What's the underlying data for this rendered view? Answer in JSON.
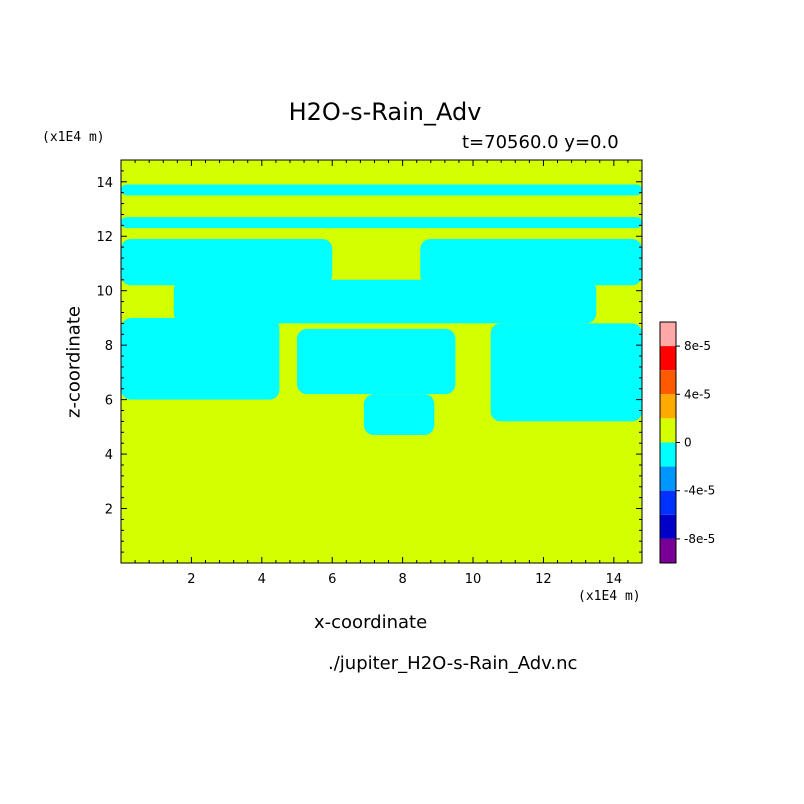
{
  "chart_data": {
    "type": "heatmap",
    "title": "H2O-s-Rain_Adv",
    "subtitle": "t=70560.0 y=0.0",
    "xlabel": "x-coordinate",
    "ylabel": "z-coordinate",
    "x_unit": "(x1E4 m)",
    "y_unit": "(x1E4 m)",
    "footer": "./jupiter_H2O-s-Rain_Adv.nc",
    "xlim": [
      0,
      14.8
    ],
    "ylim": [
      0,
      14.8
    ],
    "x_ticks": [
      2,
      4,
      6,
      8,
      10,
      12,
      14
    ],
    "y_ticks": [
      2,
      4,
      6,
      8,
      10,
      12,
      14
    ],
    "grid": false,
    "background_value": 0,
    "background_color": "#d4ff00",
    "negative_band_color": "#00ffff",
    "colorbar": {
      "levels": [
        {
          "color": "#ffa8a8"
        },
        {
          "color": "#ff0000"
        },
        {
          "color": "#ff5a00"
        },
        {
          "color": "#ffaa00"
        },
        {
          "color": "#d4ff00"
        },
        {
          "color": "#00ffff"
        },
        {
          "color": "#0096ff"
        },
        {
          "color": "#0032ff"
        },
        {
          "color": "#0000c8"
        },
        {
          "color": "#780096"
        }
      ],
      "tick_labels": [
        "8e-5",
        "4e-5",
        "0",
        "-4e-5",
        "-8e-5"
      ]
    },
    "negative_regions": [
      {
        "x": [
          0.0,
          14.8
        ],
        "y": [
          13.5,
          13.9
        ]
      },
      {
        "x": [
          0.0,
          14.8
        ],
        "y": [
          12.3,
          12.7
        ]
      },
      {
        "x": [
          0.0,
          6.0
        ],
        "y": [
          10.2,
          11.9
        ]
      },
      {
        "x": [
          8.5,
          14.8
        ],
        "y": [
          10.2,
          11.9
        ]
      },
      {
        "x": [
          1.5,
          13.5
        ],
        "y": [
          8.8,
          10.4
        ]
      },
      {
        "x": [
          0.0,
          4.5
        ],
        "y": [
          6.0,
          9.0
        ]
      },
      {
        "x": [
          5.0,
          9.5
        ],
        "y": [
          6.2,
          8.6
        ]
      },
      {
        "x": [
          10.5,
          14.8
        ],
        "y": [
          5.2,
          8.8
        ]
      },
      {
        "x": [
          6.9,
          8.9
        ],
        "y": [
          4.7,
          6.2
        ]
      }
    ]
  }
}
